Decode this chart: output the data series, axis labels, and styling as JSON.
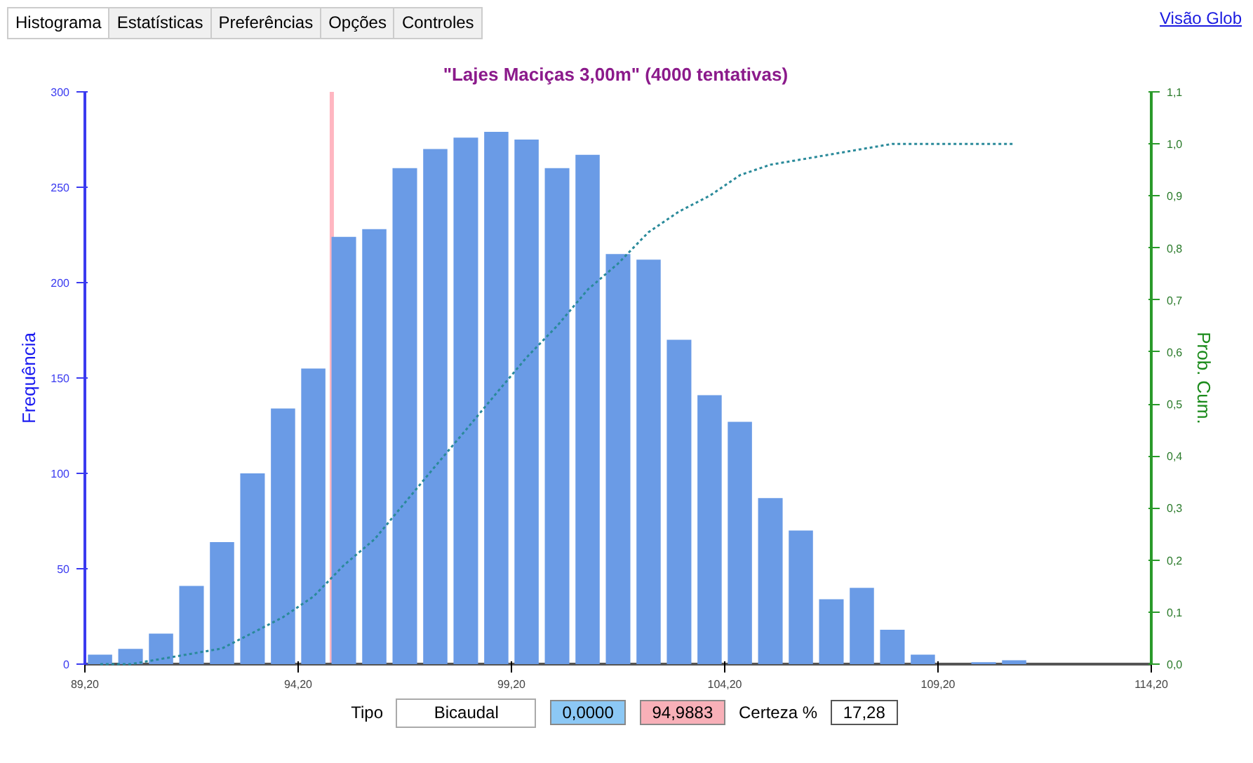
{
  "chart_data": {
    "type": "histogram",
    "title": "\"Lajes Maciças 3,00m\"  (4000 tentativas)",
    "ylabel": "Frequência",
    "y2label": "Prob. Cum.",
    "bins": [
      89.2,
      89.91,
      90.63,
      91.34,
      92.06,
      92.77,
      93.49,
      94.2,
      94.91,
      95.63,
      96.34,
      97.06,
      97.77,
      98.49,
      99.2,
      99.91,
      100.63,
      101.34,
      102.06,
      102.77,
      103.49,
      104.2,
      104.91,
      105.63,
      106.34,
      107.06,
      107.77,
      108.49,
      109.2,
      109.91,
      110.63,
      111.34
    ],
    "values": [
      5,
      8,
      16,
      41,
      64,
      100,
      134,
      155,
      224,
      228,
      260,
      270,
      276,
      279,
      275,
      260,
      267,
      215,
      212,
      170,
      141,
      127,
      87,
      70,
      34,
      40,
      18,
      5,
      0,
      1,
      2
    ],
    "color": "#6a9be6",
    "series": [
      {
        "type": "line",
        "axis": "y2",
        "color": "#2a8a9a",
        "line_style": "dotted",
        "x": [
          89.56,
          90.27,
          90.99,
          91.7,
          92.41,
          93.13,
          93.84,
          94.56,
          95.27,
          95.99,
          96.7,
          97.41,
          98.13,
          98.84,
          99.56,
          100.27,
          100.99,
          101.7,
          102.41,
          103.13,
          103.84,
          104.56,
          105.27,
          105.99,
          106.7,
          107.41,
          108.13,
          108.84,
          109.56,
          110.27,
          110.99
        ],
        "values": [
          0.0,
          0.0,
          0.01,
          0.02,
          0.03,
          0.06,
          0.09,
          0.13,
          0.19,
          0.24,
          0.31,
          0.38,
          0.45,
          0.52,
          0.59,
          0.65,
          0.72,
          0.77,
          0.83,
          0.87,
          0.9,
          0.94,
          0.96,
          0.97,
          0.98,
          0.99,
          1.0,
          1.0,
          1.0,
          1.0,
          1.0
        ]
      }
    ],
    "xlim": [
      89.2,
      114.2
    ],
    "xticks": [
      {
        "value": 89.2,
        "label": "89,20"
      },
      {
        "value": 94.2,
        "label": "94,20"
      },
      {
        "value": 99.2,
        "label": "99,20"
      },
      {
        "value": 104.2,
        "label": "104,20"
      },
      {
        "value": 109.2,
        "label": "109,20"
      },
      {
        "value": 114.2,
        "label": "114,20"
      }
    ],
    "ylim": [
      0,
      300
    ],
    "yticks": [
      0,
      50,
      100,
      150,
      200,
      250,
      300
    ],
    "y2lim": [
      0,
      1.1
    ],
    "y2ticks": [
      {
        "value": 0,
        "label": "0,0"
      },
      {
        "value": 0.1,
        "label": "0,1"
      },
      {
        "value": 0.2,
        "label": "0,2"
      },
      {
        "value": 0.3,
        "label": "0,3"
      },
      {
        "value": 0.4,
        "label": "0,4"
      },
      {
        "value": 0.5,
        "label": "0,5"
      },
      {
        "value": 0.6,
        "label": "0,6"
      },
      {
        "value": 0.7,
        "label": "0,7"
      },
      {
        "value": 0.8,
        "label": "0,8"
      },
      {
        "value": 0.9,
        "label": "0,9"
      },
      {
        "value": 1.0,
        "label": "1,0"
      },
      {
        "value": 1.1,
        "label": "1,1"
      }
    ],
    "ref_lines": [
      {
        "axis": "x",
        "value": 94.9883,
        "color": "#ffb6c1"
      }
    ],
    "grid": false,
    "annotations": [
      "Histograma",
      "Estatísticas",
      "Preferências",
      "Opções",
      "Controles",
      "Visão Glob",
      "Tipo",
      "Bicaudal",
      "0,0000",
      "94,9883",
      "Certeza %",
      "17,28"
    ]
  }
}
